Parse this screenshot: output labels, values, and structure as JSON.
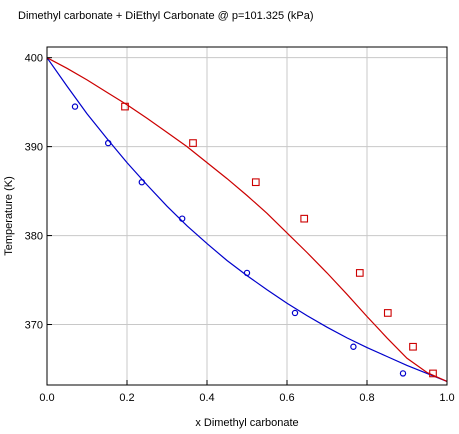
{
  "chart_data": {
    "type": "scatter",
    "title": "Dimethyl carbonate + DiEthyl Carbonate @ p=101.325 (kPa)",
    "xlabel": "x Dimethyl carbonate",
    "ylabel": "Temperature (K)",
    "xlim": [
      0,
      1
    ],
    "ylim": [
      363.2,
      401.2
    ],
    "grid": true,
    "x_ticks": [
      "0.0",
      "0.2",
      "0.4",
      "0.6",
      "0.8",
      "1.0"
    ],
    "x_tick_values": [
      0,
      0.2,
      0.4,
      0.6,
      0.8,
      1.0
    ],
    "y_ticks": [
      "370",
      "380",
      "390",
      "400"
    ],
    "y_tick_values": [
      370,
      380,
      390,
      400
    ],
    "series": [
      {
        "kind": "line",
        "color": "#0000cc",
        "x": [
          0,
          0.05,
          0.1,
          0.15,
          0.2,
          0.25,
          0.3,
          0.35,
          0.4,
          0.45,
          0.5,
          0.55,
          0.6,
          0.65,
          0.7,
          0.75,
          0.8,
          0.85,
          0.9,
          0.95,
          1.0
        ],
        "y": [
          400.0,
          396.8,
          393.7,
          390.9,
          388.2,
          385.7,
          383.3,
          381.1,
          379.1,
          377.2,
          375.5,
          373.9,
          372.4,
          371.0,
          369.7,
          368.5,
          367.4,
          366.4,
          365.4,
          364.5,
          363.6
        ]
      },
      {
        "kind": "line",
        "color": "#cc0000",
        "x": [
          0,
          0.05,
          0.1,
          0.15,
          0.2,
          0.25,
          0.3,
          0.35,
          0.4,
          0.45,
          0.5,
          0.55,
          0.6,
          0.65,
          0.7,
          0.75,
          0.8,
          0.85,
          0.9,
          0.95,
          1.0
        ],
        "y": [
          400.0,
          398.8,
          397.5,
          396.1,
          394.7,
          393.2,
          391.6,
          390.0,
          388.2,
          386.4,
          384.5,
          382.5,
          380.3,
          378.1,
          375.8,
          373.4,
          370.9,
          368.5,
          366.2,
          364.6,
          363.6
        ]
      },
      {
        "kind": "markers",
        "marker": "circle",
        "color": "#0000cc",
        "x": [
          0.07,
          0.153,
          0.237,
          0.338,
          0.5,
          0.62,
          0.766,
          0.89
        ],
        "y": [
          394.5,
          390.4,
          386.0,
          381.9,
          375.8,
          371.3,
          367.5,
          364.5
        ]
      },
      {
        "kind": "markers",
        "marker": "square",
        "color": "#cc0000",
        "x": [
          0.195,
          0.365,
          0.522,
          0.643,
          0.782,
          0.852,
          0.915,
          0.965
        ],
        "y": [
          394.5,
          390.4,
          386.0,
          381.9,
          375.8,
          371.3,
          367.5,
          364.5
        ]
      }
    ]
  }
}
